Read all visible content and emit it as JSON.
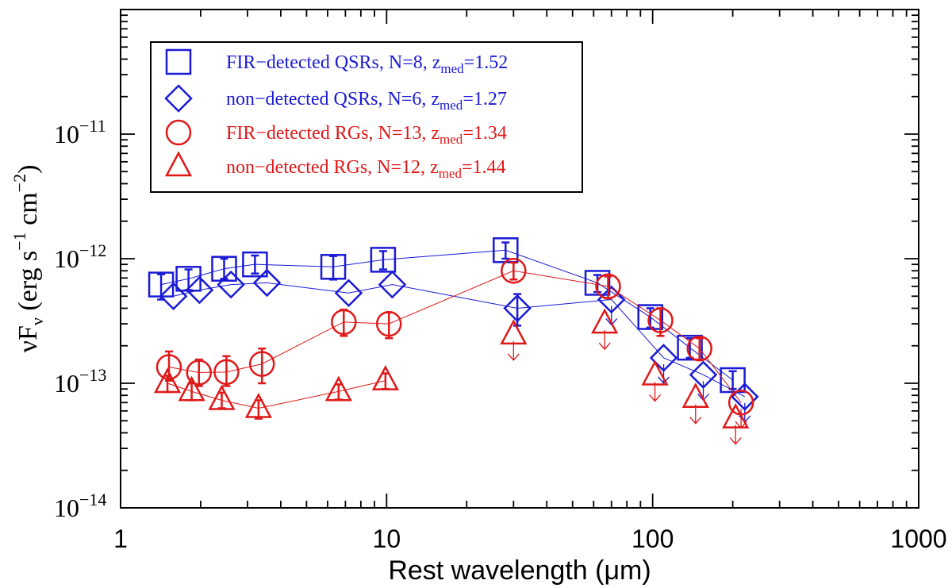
{
  "chart_data": {
    "type": "scatter",
    "xscale": "log",
    "yscale": "log",
    "xlim": [
      1,
      1000
    ],
    "ylim": [
      1e-14,
      1e-10
    ],
    "xlabel": "Rest wavelength (μm)",
    "ylabel": {
      "prefix": "νF",
      "sub": "ν",
      "units_open": " (erg s",
      "exp1": "−1",
      "units_mid": " cm",
      "exp2": "−2",
      "units_close": ")"
    },
    "x_ticks": [
      {
        "value": 1,
        "label": "1"
      },
      {
        "value": 10,
        "label": "10"
      },
      {
        "value": 100,
        "label": "100"
      },
      {
        "value": 1000,
        "label": "1000"
      }
    ],
    "y_ticks": [
      {
        "value": 1e-14,
        "base": "10",
        "exp": "−14"
      },
      {
        "value": 1e-13,
        "base": "10",
        "exp": "−13"
      },
      {
        "value": 1e-12,
        "base": "10",
        "exp": "−12"
      },
      {
        "value": 1e-11,
        "base": "10",
        "exp": "−11"
      }
    ],
    "legend_position": "top-left",
    "series": [
      {
        "name": "FIR-detected QSRs",
        "label_main": "FIR−detected QSRs, N=8, z",
        "label_sub": "med",
        "label_end": "=1.52",
        "color": "#1a1ad6",
        "marker": "square",
        "connected": true,
        "points": [
          {
            "x": 1.42,
            "y": 6.2e-13,
            "err": [
              4.7e-13,
              7.5e-13
            ]
          },
          {
            "x": 1.8,
            "y": 6.9e-13,
            "err": [
              5.6e-13,
              8.2e-13
            ]
          },
          {
            "x": 2.45,
            "y": 8.3e-13,
            "err": [
              6.9e-13,
              1e-12
            ]
          },
          {
            "x": 3.2,
            "y": 9e-13,
            "err": [
              7.6e-13,
              1.06e-12
            ]
          },
          {
            "x": 6.3,
            "y": 8.6e-13,
            "err": [
              6.8e-13,
              1.05e-12
            ]
          },
          {
            "x": 9.7,
            "y": 9.8e-13,
            "err": [
              8.2e-13,
              1.15e-12
            ]
          },
          {
            "x": 28,
            "y": 1.17e-12,
            "err": [
              1e-12,
              1.35e-12
            ]
          },
          {
            "x": 62,
            "y": 6.4e-13,
            "err": [
              5.4e-13,
              7.4e-13
            ]
          },
          {
            "x": 98,
            "y": 3.4e-13,
            "err": [
              2.8e-13,
              4e-13
            ]
          },
          {
            "x": 138,
            "y": 1.93e-13,
            "err": [
              1.6e-13,
              2.3e-13
            ]
          },
          {
            "x": 200,
            "y": 1.06e-13,
            "err": [
              9e-14,
              1.25e-13
            ]
          }
        ]
      },
      {
        "name": "non-detected QSRs",
        "label_main": "non−detected QSRs, N=6, z",
        "label_sub": "med",
        "label_end": "=1.27",
        "color": "#1a1ad6",
        "marker": "diamond",
        "connected": true,
        "points": [
          {
            "x": 1.58,
            "y": 5e-13
          },
          {
            "x": 1.98,
            "y": 5.6e-13
          },
          {
            "x": 2.6,
            "y": 6.2e-13
          },
          {
            "x": 3.55,
            "y": 6.4e-13
          },
          {
            "x": 7.2,
            "y": 5.3e-13
          },
          {
            "x": 10.5,
            "y": 6.2e-13
          },
          {
            "x": 31,
            "y": 4e-13,
            "err": [
              2.9e-13,
              5.2e-13
            ]
          },
          {
            "x": 70,
            "y": 4.7e-13,
            "upper_limit": true
          },
          {
            "x": 110,
            "y": 1.6e-13,
            "upper_limit": true
          },
          {
            "x": 155,
            "y": 1.17e-13,
            "upper_limit": true
          },
          {
            "x": 222,
            "y": 7.8e-14,
            "upper_limit": true
          }
        ]
      },
      {
        "name": "FIR-detected RGs",
        "label_main": "FIR−detected RGs, N=13, z",
        "label_sub": "med",
        "label_end": "=1.34",
        "color": "#e01818",
        "marker": "circle",
        "connected": true,
        "points": [
          {
            "x": 1.52,
            "y": 1.35e-13,
            "err": [
              1.05e-13,
              1.8e-13
            ]
          },
          {
            "x": 1.97,
            "y": 1.22e-13,
            "err": [
              9.5e-14,
              1.55e-13
            ]
          },
          {
            "x": 2.5,
            "y": 1.23e-13,
            "err": [
              9.5e-14,
              1.65e-13
            ]
          },
          {
            "x": 3.4,
            "y": 1.43e-13,
            "err": [
              1e-13,
              1.9e-13
            ]
          },
          {
            "x": 6.9,
            "y": 3.1e-13,
            "err": [
              2.4e-13,
              3.9e-13
            ]
          },
          {
            "x": 10.2,
            "y": 3e-13,
            "err": [
              2.3e-13,
              3.7e-13
            ]
          },
          {
            "x": 30,
            "y": 8e-13,
            "err": [
              6.8e-13,
              9.3e-13
            ]
          },
          {
            "x": 68,
            "y": 6e-13,
            "err": [
              4.8e-13,
              7.2e-13
            ]
          },
          {
            "x": 107,
            "y": 3.2e-13,
            "err": [
              2.4e-13,
              4e-13
            ]
          },
          {
            "x": 150,
            "y": 1.9e-13,
            "err": [
              1.55e-13,
              2.3e-13
            ]
          },
          {
            "x": 215,
            "y": 7e-14,
            "upper_limit": true
          }
        ]
      },
      {
        "name": "non-detected RGs",
        "label_main": "non−detected RGs, N=12, z",
        "label_sub": "med",
        "label_end": "=1.44",
        "color": "#e01818",
        "marker": "triangle",
        "connected": true,
        "connect_count": 6,
        "points": [
          {
            "x": 1.5,
            "y": 1e-13,
            "err": [
              8.5e-14,
              1.15e-13
            ]
          },
          {
            "x": 1.85,
            "y": 8.6e-14,
            "err": [
              7.3e-14,
              1e-13
            ]
          },
          {
            "x": 2.4,
            "y": 7.3e-14,
            "err": [
              6.3e-14,
              8.4e-14
            ]
          },
          {
            "x": 3.3,
            "y": 6.3e-14,
            "err": [
              5.2e-14,
              7.3e-14
            ]
          },
          {
            "x": 6.6,
            "y": 8.6e-14,
            "err": [
              7.4e-14,
              9.8e-14
            ]
          },
          {
            "x": 9.9,
            "y": 1.05e-13,
            "err": [
              9e-14,
              1.2e-13
            ]
          },
          {
            "x": 30,
            "y": 2.45e-13,
            "upper_limit": true
          },
          {
            "x": 66,
            "y": 3e-13,
            "upper_limit": true
          },
          {
            "x": 102,
            "y": 1.15e-13,
            "upper_limit": true
          },
          {
            "x": 145,
            "y": 7.6e-14,
            "upper_limit": true
          },
          {
            "x": 205,
            "y": 5.2e-14,
            "upper_limit": true
          }
        ]
      }
    ]
  }
}
